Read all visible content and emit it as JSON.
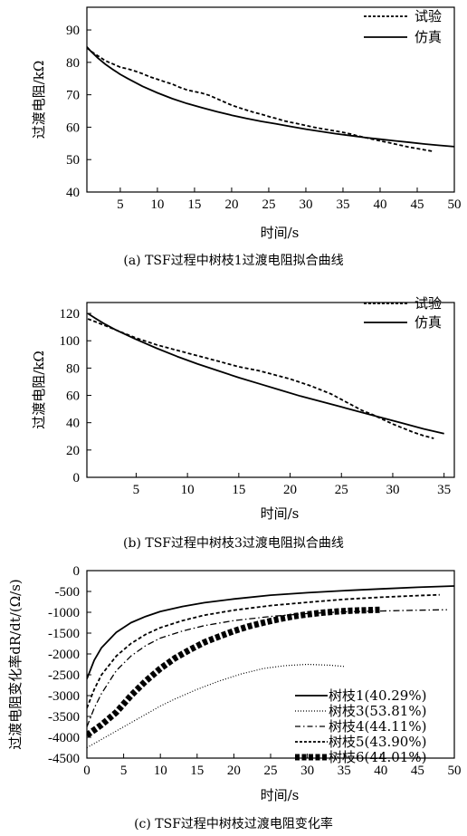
{
  "chart_data": [
    {
      "type": "line",
      "caption": "(a)  TSF过程中树枝1过渡电阻拟合曲线",
      "xlabel": "时间/s",
      "ylabel": "过渡电阻/kΩ",
      "xlim": [
        0.5,
        50
      ],
      "ylim": [
        40,
        97
      ],
      "xticks": [
        5,
        10,
        15,
        20,
        25,
        30,
        35,
        40,
        45,
        50
      ],
      "yticks": [
        40,
        50,
        60,
        70,
        80,
        90
      ],
      "legend_position": "top-right",
      "series": [
        {
          "name": "试验",
          "style": "dashed",
          "x": [
            0.5,
            1,
            2,
            3,
            4,
            5,
            6,
            7,
            8,
            9,
            10,
            11,
            12,
            13,
            14,
            15,
            16,
            17,
            18,
            19,
            20,
            21,
            22,
            23,
            24,
            25,
            26,
            27,
            28,
            29,
            30,
            31,
            32,
            33,
            34,
            35,
            36,
            37,
            38,
            39,
            40,
            41,
            42,
            43,
            44,
            45,
            46,
            47
          ],
          "y": [
            84.5,
            83.5,
            82,
            80.5,
            79.5,
            78.5,
            78,
            77.3,
            76.5,
            75.5,
            74.8,
            74,
            73.3,
            72.3,
            71.5,
            71,
            70.5,
            69.8,
            68.8,
            67.8,
            66.8,
            66,
            65.3,
            64.6,
            64,
            63.3,
            62.7,
            62,
            61.5,
            61,
            60.5,
            60,
            59.6,
            59.2,
            58.8,
            58.4,
            57.9,
            57.3,
            56.8,
            56.3,
            55.8,
            55.3,
            54.8,
            54.3,
            53.8,
            53.4,
            53,
            52.6
          ]
        },
        {
          "name": "仿真",
          "style": "solid",
          "x": [
            0.5,
            1,
            2,
            3,
            4,
            5,
            6,
            8,
            10,
            12,
            14,
            16,
            18,
            20,
            22,
            24,
            26,
            28,
            30,
            32,
            34,
            36,
            38,
            40,
            42,
            44,
            46,
            48,
            50
          ],
          "y": [
            84.8,
            83.5,
            81.3,
            79.4,
            77.8,
            76.3,
            75,
            72.6,
            70.6,
            68.8,
            67.3,
            66,
            64.8,
            63.7,
            62.7,
            61.8,
            61,
            60.2,
            59.4,
            58.7,
            58,
            57.4,
            56.8,
            56.3,
            55.8,
            55.3,
            54.8,
            54.4,
            54
          ]
        }
      ]
    },
    {
      "type": "line",
      "caption": "(b)  TSF过程中树枝3过渡电阻拟合曲线",
      "xlabel": "时间/s",
      "ylabel": "过渡电阻/kΩ",
      "xlim": [
        0.2,
        36
      ],
      "ylim": [
        0,
        128
      ],
      "xticks": [
        5,
        10,
        15,
        20,
        25,
        30,
        35
      ],
      "yticks": [
        0,
        20,
        40,
        60,
        80,
        100,
        120
      ],
      "legend_position": "top-right",
      "series": [
        {
          "name": "试验",
          "style": "dashed",
          "x": [
            0.3,
            1,
            2,
            3,
            4,
            5,
            6,
            7,
            8,
            9,
            10,
            11,
            12,
            13,
            14,
            15,
            16,
            17,
            18,
            19,
            20,
            21,
            22,
            23,
            24,
            25,
            26,
            27,
            28,
            29,
            30,
            31,
            32,
            33,
            34
          ],
          "y": [
            116,
            114,
            111,
            108,
            105,
            102,
            99.5,
            97,
            95,
            93,
            91,
            89,
            87,
            85,
            83,
            81,
            79.5,
            78,
            76,
            74,
            72,
            69.5,
            67,
            64,
            61,
            57,
            53,
            49,
            46,
            42.5,
            39,
            36,
            33,
            30.5,
            28.5
          ]
        },
        {
          "name": "仿真",
          "style": "solid",
          "x": [
            0.3,
            1,
            2,
            3,
            4,
            5,
            7,
            9,
            11,
            13,
            15,
            17,
            19,
            21,
            23,
            25,
            27,
            29,
            31,
            33,
            35
          ],
          "y": [
            120,
            116.5,
            112,
            108,
            104.5,
            101,
            94.5,
            88.5,
            83,
            78,
            73,
            68.5,
            64,
            59.5,
            55.5,
            51.5,
            47.5,
            43.5,
            39.5,
            35.5,
            32
          ]
        }
      ]
    },
    {
      "type": "line",
      "caption": "(c)  TSF过程中树枝过渡电阻变化率",
      "xlabel": "时间/s",
      "ylabel": "过渡电阻变化率dR/dt/(Ω/s)",
      "xlim": [
        0,
        50
      ],
      "ylim": [
        -4500,
        0
      ],
      "xticks": [
        0,
        5,
        10,
        15,
        20,
        25,
        30,
        35,
        40,
        45,
        50
      ],
      "yticks": [
        0,
        -500,
        -1000,
        -1500,
        -2000,
        -2500,
        -3000,
        -3500,
        -4000,
        -4500
      ],
      "legend_position": "bottom-right",
      "series": [
        {
          "name": "树枝1(40.29%)",
          "style": "solid",
          "x": [
            0,
            1,
            2,
            4,
            6,
            8,
            10,
            13,
            16,
            20,
            25,
            30,
            35,
            40,
            45,
            50
          ],
          "y": [
            -2600,
            -2150,
            -1850,
            -1480,
            -1250,
            -1100,
            -980,
            -860,
            -770,
            -680,
            -590,
            -530,
            -480,
            -440,
            -400,
            -370
          ]
        },
        {
          "name": "树枝3(53.81%)",
          "style": "dotted",
          "x": [
            0,
            2,
            4,
            6,
            8,
            10,
            12,
            15,
            18,
            21,
            24,
            27,
            30,
            33,
            35
          ],
          "y": [
            -4250,
            -4050,
            -3850,
            -3650,
            -3450,
            -3250,
            -3080,
            -2850,
            -2650,
            -2480,
            -2350,
            -2280,
            -2250,
            -2270,
            -2300
          ]
        },
        {
          "name": "树枝4(44.11%)",
          "style": "dashdot",
          "x": [
            0,
            1,
            2,
            4,
            6,
            8,
            10,
            13,
            16,
            20,
            25,
            30,
            35,
            40,
            45,
            49
          ],
          "y": [
            -3750,
            -3300,
            -2950,
            -2400,
            -2050,
            -1800,
            -1620,
            -1450,
            -1320,
            -1200,
            -1100,
            -1030,
            -990,
            -970,
            -950,
            -940
          ]
        },
        {
          "name": "树枝5(43.90%)",
          "style": "dashed",
          "x": [
            0,
            1,
            2,
            4,
            6,
            8,
            10,
            13,
            16,
            20,
            25,
            30,
            35,
            40,
            45,
            48
          ],
          "y": [
            -3300,
            -2850,
            -2500,
            -2050,
            -1750,
            -1530,
            -1370,
            -1200,
            -1070,
            -950,
            -840,
            -760,
            -690,
            -640,
            -600,
            -580
          ]
        },
        {
          "name": "树枝6(44.01%)",
          "style": "thick-dashed",
          "x": [
            0,
            2,
            4,
            6,
            8,
            10,
            12,
            14,
            16,
            18,
            20,
            22,
            24,
            26,
            28,
            30,
            32,
            34,
            36,
            38,
            40
          ],
          "y": [
            -3950,
            -3700,
            -3400,
            -3000,
            -2650,
            -2350,
            -2100,
            -1900,
            -1720,
            -1580,
            -1450,
            -1340,
            -1250,
            -1170,
            -1100,
            -1050,
            -1010,
            -980,
            -960,
            -950,
            -940
          ]
        }
      ]
    }
  ]
}
